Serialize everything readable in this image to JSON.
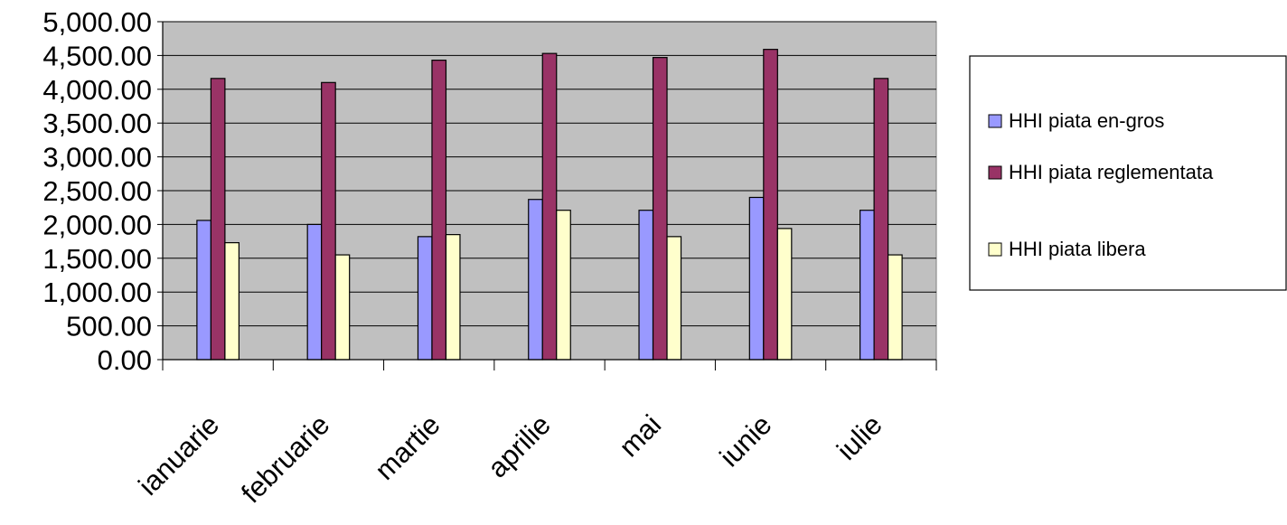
{
  "chart_data": {
    "type": "bar",
    "title": "",
    "xlabel": "",
    "ylabel": "",
    "categories": [
      "ianuarie",
      "februarie",
      "martie",
      "aprilie",
      "mai",
      "iunie",
      "iulie"
    ],
    "series": [
      {
        "name": "HHI piata en-gros",
        "color": "#9999ff",
        "values": [
          2060,
          2000,
          1820,
          2370,
          2210,
          2400,
          2210
        ]
      },
      {
        "name": "HHI piata reglementata",
        "color": "#993366",
        "values": [
          4160,
          4100,
          4430,
          4530,
          4470,
          4590,
          4160
        ]
      },
      {
        "name": "HHI piata libera",
        "color": "#ffffcc",
        "values": [
          1730,
          1550,
          1850,
          2210,
          1820,
          1940,
          1550
        ]
      }
    ],
    "yticks": [
      "0.00",
      "500.00",
      "1,000.00",
      "1,500.00",
      "2,000.00",
      "2,500.00",
      "3,000.00",
      "3,500.00",
      "4,000.00",
      "4,500.00",
      "5,000.00"
    ],
    "ylim": [
      0,
      5000
    ],
    "plot_background": "#c0c0c0",
    "grid": true,
    "legend_position": "right"
  }
}
